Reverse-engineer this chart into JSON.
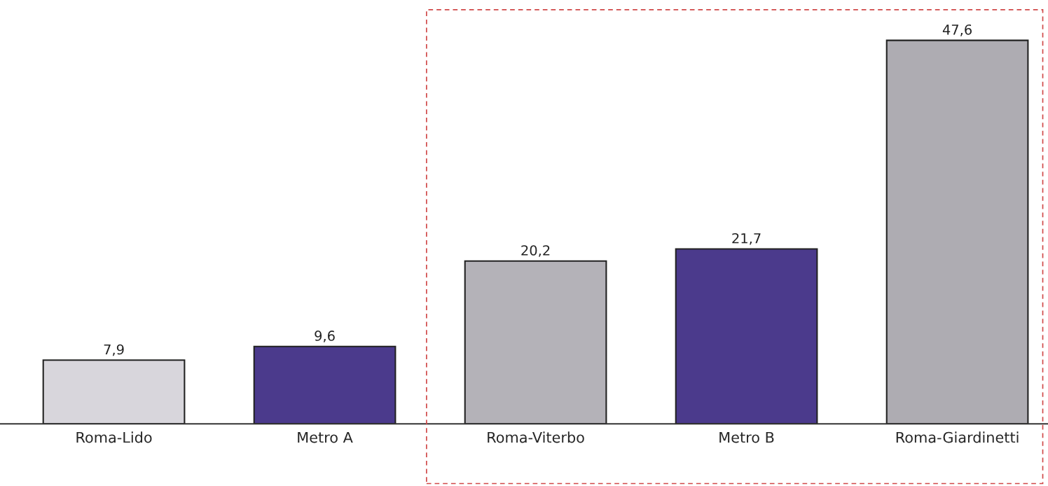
{
  "chart_data": {
    "type": "bar",
    "categories": [
      "Roma-Lido",
      "Metro A",
      "Roma-Viterbo",
      "Metro B",
      "Roma-Giardinetti"
    ],
    "values": [
      7.9,
      9.6,
      20.2,
      21.7,
      47.6
    ],
    "colors": [
      "#d8d6dc",
      "#4b3a8c",
      "#b4b2b8",
      "#4b3a8c",
      "#aeacb2"
    ],
    "value_labels": [
      "7,9",
      "9,6",
      "20,2",
      "21,7",
      "47,6"
    ]
  }
}
